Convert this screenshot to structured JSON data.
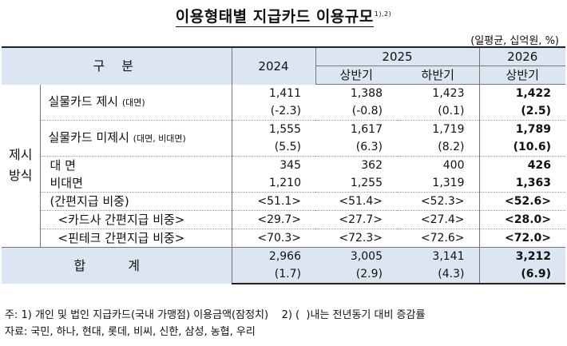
{
  "title": "이용형태별 지급카드 이용규모",
  "title_sup": "1),2)",
  "unit": "(일평균, 십억원, %)",
  "header": {
    "category": "구 분",
    "y2024": "2024",
    "y2025": "2025",
    "h1_2025": "상반기",
    "h2_2025": "하반기",
    "y2026": "2026",
    "h1_2026": "상반기"
  },
  "side_label": "제시\n방식",
  "rows": {
    "physical_present": {
      "label": "실물카드 제시",
      "label_note": "(대면)",
      "values": [
        "1,411",
        "1,388",
        "1,423",
        "1,422"
      ],
      "changes": [
        "(-2.3)",
        "(-0.8)",
        "(0.1)",
        "(2.5)"
      ]
    },
    "physical_absent": {
      "label": "실물카드 미제시",
      "label_note": "(대면, 비대면)",
      "values": [
        "1,555",
        "1,617",
        "1,719",
        "1,789"
      ],
      "changes": [
        "(5.5)",
        "(6.3)",
        "(8.2)",
        "(10.6)"
      ]
    },
    "face_to_face": {
      "label": "대 면",
      "values": [
        "345",
        "362",
        "400",
        "426"
      ]
    },
    "non_face": {
      "label": "비대면",
      "values": [
        "1,210",
        "1,255",
        "1,319",
        "1,363"
      ]
    },
    "simple_pay": {
      "label": "(간편지급 비중)",
      "values": [
        "<51.1>",
        "<51.4>",
        "<52.3>",
        "<52.6>"
      ]
    },
    "card_simple": {
      "label": "<카드사 간편지급 비중>",
      "values": [
        "<29.7>",
        "<27.7>",
        "<27.4>",
        "<28.0>"
      ]
    },
    "fintech_simple": {
      "label": "<핀테크 간편지급 비중>",
      "values": [
        "<70.3>",
        "<72.3>",
        "<72.6>",
        "<72.0>"
      ]
    },
    "total": {
      "label": "합 계",
      "values": [
        "2,966",
        "3,005",
        "3,141",
        "3,212"
      ],
      "changes": [
        "(1.7)",
        "(2.9)",
        "(4.3)",
        "(6.9)"
      ]
    }
  },
  "notes": {
    "line1": "주: 1) 개인 및 법인 지급카드(국내 가맹점) 이용금액(잠정치)    2) (  )내는 전년동기 대비 증감률",
    "line2": "자료: 국민, 하나, 현대, 롯데, 비씨, 신한, 삼성, 농협, 우리"
  },
  "colors": {
    "header_bg": "#dce6f2"
  }
}
